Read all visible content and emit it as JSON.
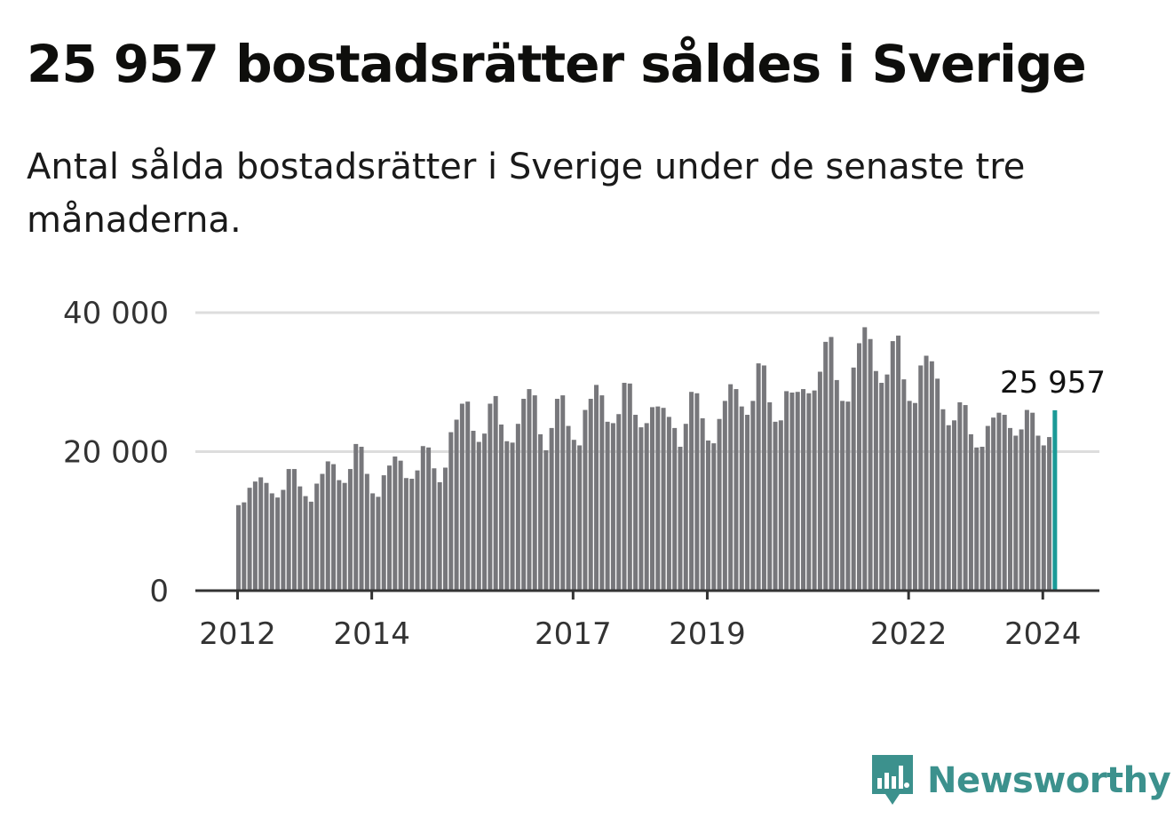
{
  "colors": {
    "bar": "#77777b",
    "highlight": "#1b9a97",
    "brand": "#3c918d",
    "grid": "#dddddd",
    "axis": "#333333"
  },
  "brand": {
    "name": "Newsworthy",
    "icon": "newsworthy-chart-bubble-icon"
  },
  "chart_data": {
    "type": "bar",
    "title": "25 957 bostadsrätter såldes i Sverige",
    "subtitle": "Antal sålda bostadsrätter i Sverige under de senaste tre månaderna.",
    "xlabel": "",
    "ylabel": "",
    "ylim": [
      0,
      40000
    ],
    "yticks": [
      0,
      20000,
      40000
    ],
    "ytick_labels": [
      "0",
      "20 000",
      "40 000"
    ],
    "xticks": [
      "2012",
      "2014",
      "2017",
      "2019",
      "2022",
      "2024"
    ],
    "grid": true,
    "legend": "none",
    "start": "2012-01",
    "values": [
      12300,
      12700,
      14800,
      15700,
      16300,
      15500,
      14000,
      13400,
      14500,
      17500,
      17500,
      15000,
      13600,
      12800,
      15400,
      16800,
      18600,
      18200,
      15900,
      15500,
      17500,
      21100,
      20700,
      16800,
      14000,
      13500,
      16600,
      18000,
      19300,
      18700,
      16200,
      16100,
      17300,
      20800,
      20600,
      17600,
      15600,
      17700,
      22800,
      24600,
      26900,
      27200,
      23000,
      21400,
      22600,
      26900,
      28000,
      23900,
      21500,
      21300,
      24000,
      27600,
      29000,
      28100,
      22500,
      20200,
      23400,
      27600,
      28100,
      23700,
      21700,
      20900,
      26000,
      27600,
      29600,
      28100,
      24300,
      24100,
      25400,
      29900,
      29800,
      25300,
      23500,
      24100,
      26400,
      26500,
      26300,
      25000,
      23400,
      20700,
      24000,
      28600,
      28400,
      24800,
      21600,
      21200,
      24700,
      27300,
      29700,
      29000,
      26500,
      25300,
      27300,
      32700,
      32400,
      27100,
      24300,
      24500,
      28700,
      28500,
      28600,
      29000,
      28400,
      28800,
      31500,
      35800,
      36500,
      30300,
      27300,
      27200,
      32100,
      35600,
      37900,
      36200,
      31600,
      29900,
      31100,
      35900,
      36700,
      30400,
      27300,
      27000,
      32400,
      33800,
      33000,
      30500,
      26100,
      23800,
      24500,
      27100,
      26700,
      22500,
      20600,
      20700,
      23700,
      24900,
      25600,
      25300,
      23400,
      22300,
      23200,
      26000,
      25600,
      22300,
      20900,
      22100,
      25957
    ],
    "last_value": 25957,
    "last_value_label": "25 957"
  }
}
